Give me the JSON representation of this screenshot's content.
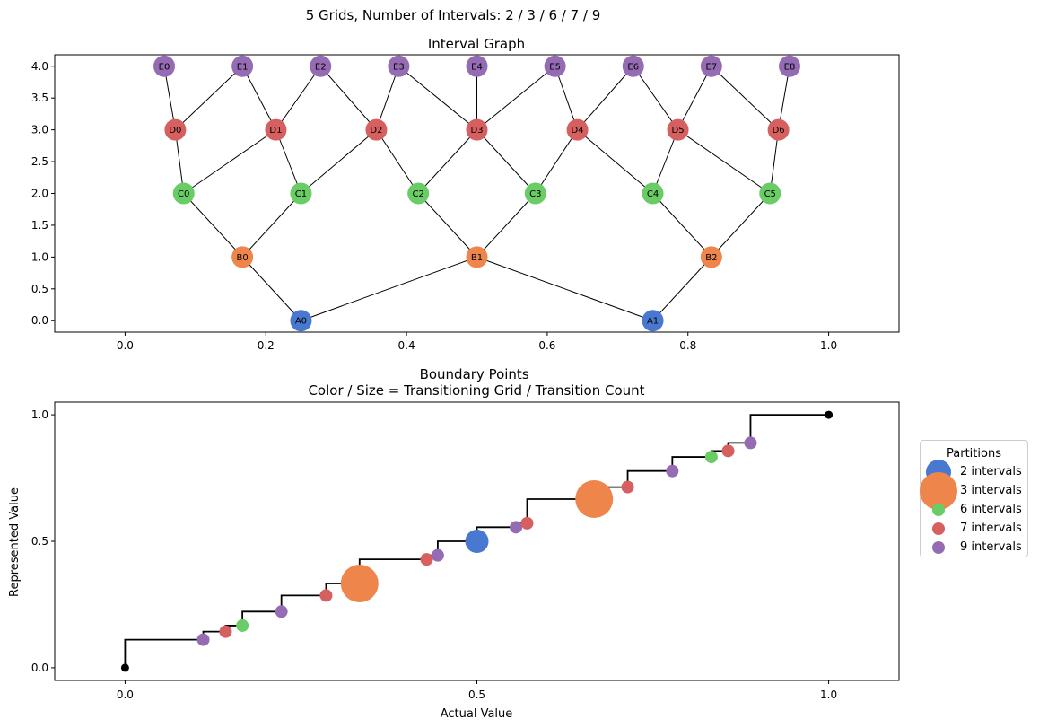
{
  "figure": {
    "suptitle": "5 Grids, Number of Intervals: 2 / 3 / 6 / 7 / 9"
  },
  "colors": {
    "grid_2": "#4878d0",
    "grid_3": "#ee854a",
    "grid_6": "#6acc64",
    "grid_7": "#d65f5f",
    "grid_9": "#956cb4",
    "endpoint": "#000000",
    "edge": "#000000"
  },
  "chart_data": [
    {
      "type": "network",
      "title": "Interval Graph",
      "xlabel": "",
      "ylabel": "",
      "xlim": [
        -0.1,
        1.1
      ],
      "ylim": [
        -0.18,
        4.18
      ],
      "xticks": [
        "0.0",
        "0.2",
        "0.4",
        "0.6",
        "0.8",
        "1.0"
      ],
      "yticks": [
        "0.0",
        "0.5",
        "1.0",
        "1.5",
        "2.0",
        "2.5",
        "3.0",
        "3.5",
        "4.0"
      ],
      "nodes": [
        {
          "id": "A0",
          "x": 0.25,
          "y": 0,
          "grid": 2
        },
        {
          "id": "A1",
          "x": 0.75,
          "y": 0,
          "grid": 2
        },
        {
          "id": "B0",
          "x": 0.1667,
          "y": 1,
          "grid": 3
        },
        {
          "id": "B1",
          "x": 0.5,
          "y": 1,
          "grid": 3
        },
        {
          "id": "B2",
          "x": 0.8333,
          "y": 1,
          "grid": 3
        },
        {
          "id": "C0",
          "x": 0.0833,
          "y": 2,
          "grid": 6
        },
        {
          "id": "C1",
          "x": 0.25,
          "y": 2,
          "grid": 6
        },
        {
          "id": "C2",
          "x": 0.4167,
          "y": 2,
          "grid": 6
        },
        {
          "id": "C3",
          "x": 0.5833,
          "y": 2,
          "grid": 6
        },
        {
          "id": "C4",
          "x": 0.75,
          "y": 2,
          "grid": 6
        },
        {
          "id": "C5",
          "x": 0.9167,
          "y": 2,
          "grid": 6
        },
        {
          "id": "D0",
          "x": 0.0714,
          "y": 3,
          "grid": 7
        },
        {
          "id": "D1",
          "x": 0.2143,
          "y": 3,
          "grid": 7
        },
        {
          "id": "D2",
          "x": 0.3571,
          "y": 3,
          "grid": 7
        },
        {
          "id": "D3",
          "x": 0.5,
          "y": 3,
          "grid": 7
        },
        {
          "id": "D4",
          "x": 0.6429,
          "y": 3,
          "grid": 7
        },
        {
          "id": "D5",
          "x": 0.7857,
          "y": 3,
          "grid": 7
        },
        {
          "id": "D6",
          "x": 0.9286,
          "y": 3,
          "grid": 7
        },
        {
          "id": "E0",
          "x": 0.0556,
          "y": 4,
          "grid": 9
        },
        {
          "id": "E1",
          "x": 0.1667,
          "y": 4,
          "grid": 9
        },
        {
          "id": "E2",
          "x": 0.2778,
          "y": 4,
          "grid": 9
        },
        {
          "id": "E3",
          "x": 0.3889,
          "y": 4,
          "grid": 9
        },
        {
          "id": "E4",
          "x": 0.5,
          "y": 4,
          "grid": 9
        },
        {
          "id": "E5",
          "x": 0.6111,
          "y": 4,
          "grid": 9
        },
        {
          "id": "E6",
          "x": 0.7222,
          "y": 4,
          "grid": 9
        },
        {
          "id": "E7",
          "x": 0.8333,
          "y": 4,
          "grid": 9
        },
        {
          "id": "E8",
          "x": 0.9444,
          "y": 4,
          "grid": 9
        }
      ]
    },
    {
      "type": "scatter",
      "title": "Boundary Points\nColor / Size = Transitioning Grid / Transition Count",
      "xlabel": "Actual Value",
      "ylabel": "Represented Value",
      "xlim": [
        -0.1,
        1.1
      ],
      "ylim": [
        -0.05,
        1.05
      ],
      "xticks": [
        "0.0",
        "0.5",
        "1.0"
      ],
      "yticks": [
        "0.0",
        "0.5",
        "1.0"
      ],
      "step_line": [
        [
          0,
          0
        ],
        [
          1,
          1
        ]
      ],
      "endpoints": [
        {
          "x": 0,
          "y": 0
        },
        {
          "x": 1,
          "y": 1
        }
      ],
      "points": [
        {
          "x": 0.1111,
          "y": 0.1111,
          "grid": 9,
          "count": 1
        },
        {
          "x": 0.1429,
          "y": 0.1429,
          "grid": 7,
          "count": 1
        },
        {
          "x": 0.1667,
          "y": 0.1667,
          "grid": 6,
          "count": 1
        },
        {
          "x": 0.2222,
          "y": 0.2222,
          "grid": 9,
          "count": 1
        },
        {
          "x": 0.2857,
          "y": 0.2857,
          "grid": 7,
          "count": 1
        },
        {
          "x": 0.3333,
          "y": 0.3333,
          "grid": 3,
          "count": 2
        },
        {
          "x": 0.4286,
          "y": 0.4286,
          "grid": 7,
          "count": 1
        },
        {
          "x": 0.4444,
          "y": 0.4444,
          "grid": 9,
          "count": 1
        },
        {
          "x": 0.5,
          "y": 0.5,
          "grid": 2,
          "count": 1
        },
        {
          "x": 0.5556,
          "y": 0.5556,
          "grid": 9,
          "count": 1
        },
        {
          "x": 0.5714,
          "y": 0.5714,
          "grid": 7,
          "count": 1
        },
        {
          "x": 0.6667,
          "y": 0.6667,
          "grid": 3,
          "count": 2
        },
        {
          "x": 0.7143,
          "y": 0.7143,
          "grid": 7,
          "count": 1
        },
        {
          "x": 0.7778,
          "y": 0.7778,
          "grid": 9,
          "count": 1
        },
        {
          "x": 0.8333,
          "y": 0.8333,
          "grid": 6,
          "count": 1
        },
        {
          "x": 0.8571,
          "y": 0.8571,
          "grid": 7,
          "count": 1
        },
        {
          "x": 0.8889,
          "y": 0.8889,
          "grid": 9,
          "count": 1
        }
      ],
      "legend": {
        "title": "Partitions",
        "placement": "outside-right",
        "entries": [
          {
            "label": "2 intervals",
            "grid": 2
          },
          {
            "label": "3 intervals",
            "grid": 3
          },
          {
            "label": "6 intervals",
            "grid": 6
          },
          {
            "label": "7 intervals",
            "grid": 7
          },
          {
            "label": "9 intervals",
            "grid": 9
          }
        ]
      }
    }
  ]
}
